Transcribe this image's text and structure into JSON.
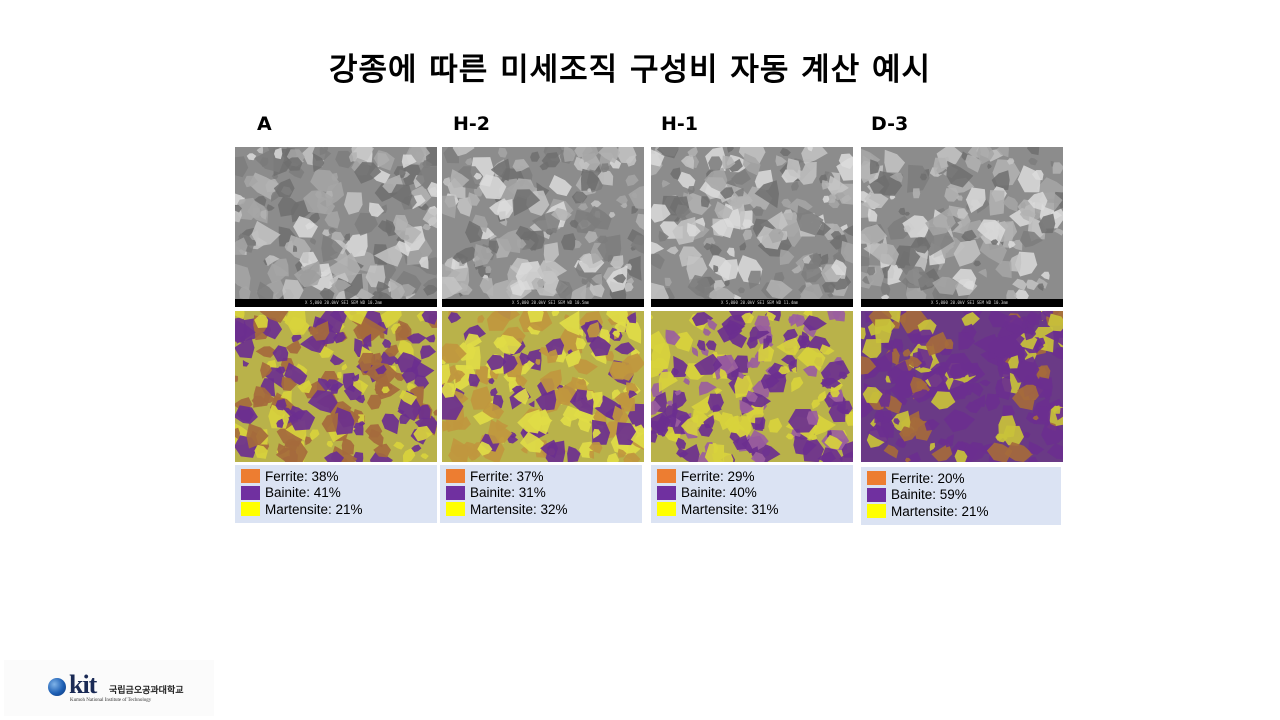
{
  "slide": {
    "title": "강종에 따른 미세조직 구성비 자동 계산 예시"
  },
  "colors": {
    "ferrite": "#ed7d31",
    "bainite": "#7030a0",
    "martensite": "#ffff00",
    "legend_bg": "#dbe3f3"
  },
  "samples": [
    {
      "label": "A",
      "scale_text": "X 5,000    20.0kV SEI    SEM    WD 10.2mm",
      "legend": [
        "Ferrite: 38%",
        "Bainite: 41%",
        "Martensite: 21%"
      ]
    },
    {
      "label": "H-2",
      "scale_text": "X 5,000    20.0kV SEI    SEM    WD 10.5mm",
      "legend": [
        "Ferrite: 37%",
        "Bainite: 31%",
        "Martensite: 32%"
      ]
    },
    {
      "label": "H-1",
      "scale_text": "X 5,000    20.0kV SEI    SEM    WD 11.4mm",
      "legend": [
        "Ferrite: 29%",
        "Bainite: 40%",
        "Martensite: 31%"
      ]
    },
    {
      "label": "D-3",
      "scale_text": "X 5,000    20.0kV SEI    SEM    WD 10.3mm",
      "legend": [
        "Ferrite: 20%",
        "Bainite: 59%",
        "Martensite: 21%"
      ]
    }
  ],
  "logo": {
    "mark": "kit",
    "korean_name": "국립금오공과대학교",
    "english_name": "Kumoh National Institute of Technology"
  }
}
